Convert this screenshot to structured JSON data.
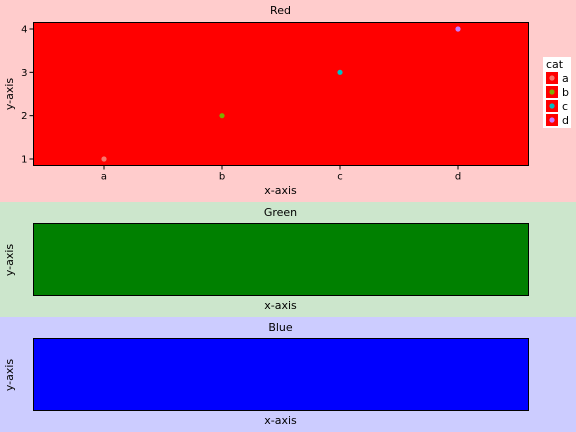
{
  "chart_data": [
    {
      "type": "scatter",
      "title": "Red",
      "xlabel": "x-axis",
      "ylabel": "y-axis",
      "panel_background": "#ffcccc",
      "plot_background": "#ff0000",
      "categories": [
        "a",
        "b",
        "c",
        "d"
      ],
      "yticks": [
        "1",
        "2",
        "3",
        "4"
      ],
      "ylim": [
        0.85,
        4.15
      ],
      "points": [
        {
          "x": "a",
          "y": 1,
          "cat": "a",
          "color": "#f8766d"
        },
        {
          "x": "b",
          "y": 2,
          "cat": "b",
          "color": "#7cae00"
        },
        {
          "x": "c",
          "y": 3,
          "cat": "c",
          "color": "#00bfc4"
        },
        {
          "x": "d",
          "y": 4,
          "cat": "d",
          "color": "#c77cff"
        }
      ],
      "legend": {
        "title": "cat",
        "placement": "right",
        "items": [
          {
            "label": "a",
            "color": "#f8766d"
          },
          {
            "label": "b",
            "color": "#7cae00"
          },
          {
            "label": "c",
            "color": "#00bfc4"
          },
          {
            "label": "d",
            "color": "#c77cff"
          }
        ]
      }
    },
    {
      "type": "scatter",
      "title": "Green",
      "xlabel": "x-axis",
      "ylabel": "y-axis",
      "panel_background": "#cce6cc",
      "plot_background": "#008000",
      "points": []
    },
    {
      "type": "scatter",
      "title": "Blue",
      "xlabel": "x-axis",
      "ylabel": "y-axis",
      "panel_background": "#ccccff",
      "plot_background": "#0000ff",
      "points": []
    }
  ]
}
